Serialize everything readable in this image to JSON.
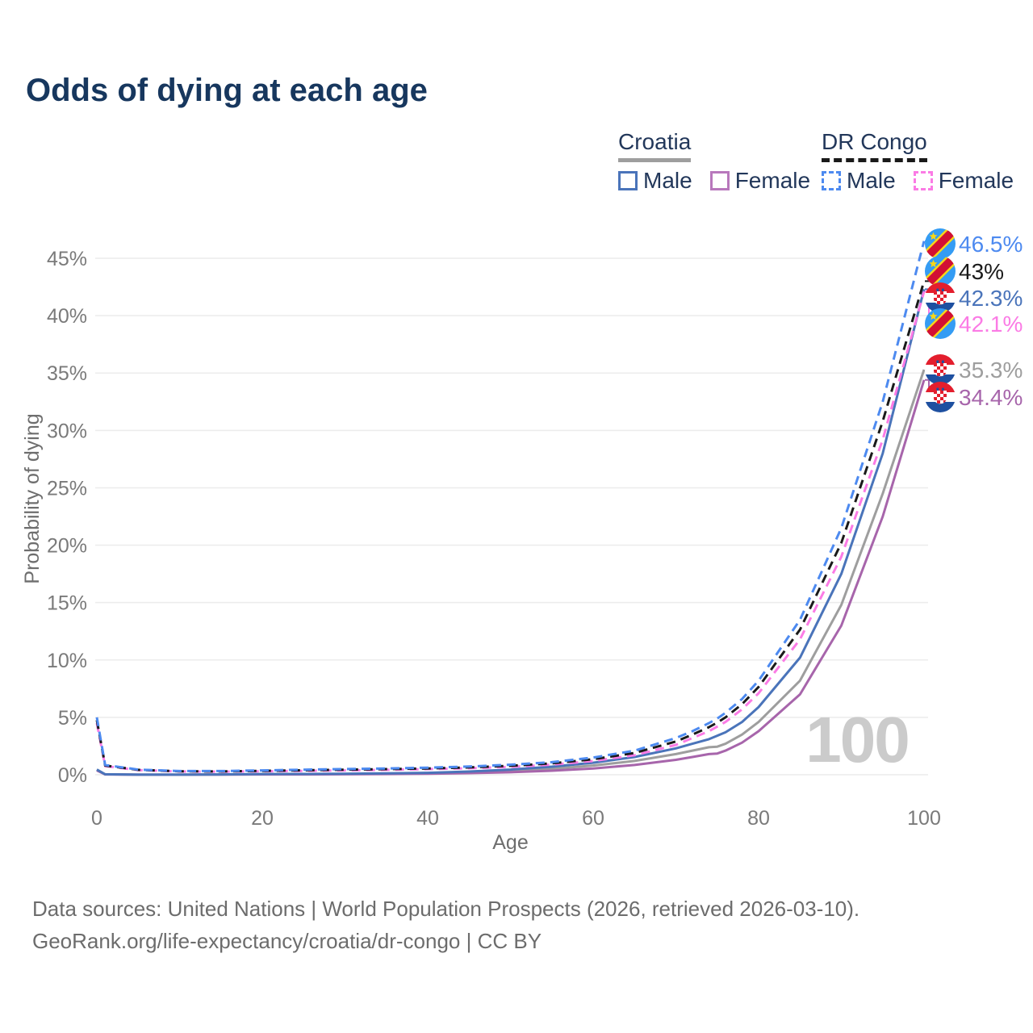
{
  "title": "Odds of dying at each age",
  "legend": {
    "croatia": {
      "label": "Croatia",
      "male_label": "Male",
      "female_label": "Female",
      "underline_color": "#9e9e9e",
      "male_color": "#4a74ba",
      "female_color": "#b878bc"
    },
    "drcongo": {
      "label": "DR Congo",
      "male_label": "Male",
      "female_label": "Female",
      "underline_color": "#1a1a1a",
      "male_color": "#4d8af0",
      "female_color": "#fb7be5"
    }
  },
  "footer": {
    "line1": "Data sources: United Nations | World Population Prospects (2026, retrieved 2026-03-10).",
    "line2": "GeoRank.org/life-expectancy/croatia/dr-congo | CC BY"
  },
  "chart_data": {
    "type": "line",
    "title": "Odds of dying at each age",
    "xlabel": "Age",
    "ylabel": "Probability of dying",
    "watermark": "100",
    "grid": "horizontal-only",
    "legend_position": "top-right",
    "xlim": [
      0,
      100
    ],
    "ylim": [
      0,
      47.5
    ],
    "x_ticks": [
      0,
      20,
      40,
      60,
      80,
      100
    ],
    "x_tick_labels": [
      "0",
      "20",
      "40",
      "60",
      "80",
      "100"
    ],
    "y_ticks_percent": [
      0,
      5,
      10,
      15,
      20,
      25,
      30,
      35,
      40,
      45
    ],
    "y_tick_labels": [
      "0%",
      "5%",
      "10%",
      "15%",
      "20%",
      "25%",
      "30%",
      "35%",
      "40%",
      "45%"
    ],
    "x": [
      0,
      1,
      5,
      10,
      15,
      20,
      25,
      30,
      35,
      40,
      45,
      50,
      55,
      60,
      65,
      70,
      72,
      74,
      75,
      76,
      78,
      80,
      85,
      90,
      95,
      100
    ],
    "series": [
      {
        "id": "drcongo-male",
        "country": "DR Congo",
        "sex": "Male",
        "style": "dashed",
        "color": "#4d8af0",
        "flag": "drcongo",
        "end_label": "46.5%",
        "values": [
          5.0,
          0.85,
          0.45,
          0.32,
          0.32,
          0.38,
          0.44,
          0.5,
          0.55,
          0.62,
          0.72,
          0.88,
          1.1,
          1.5,
          2.1,
          3.2,
          3.8,
          4.5,
          4.9,
          5.4,
          6.6,
          8.2,
          13.5,
          21.5,
          32.5,
          46.5
        ]
      },
      {
        "id": "drcongo-both",
        "country": "DR Congo",
        "sex": "Both sexes",
        "style": "dashed",
        "color": "#1a1a1a",
        "flag": "drcongo",
        "end_label": "43%",
        "values": [
          4.75,
          0.8,
          0.43,
          0.3,
          0.29,
          0.34,
          0.39,
          0.44,
          0.49,
          0.55,
          0.64,
          0.78,
          0.99,
          1.35,
          1.9,
          2.9,
          3.5,
          4.15,
          4.55,
          5.0,
          6.15,
          7.65,
          12.65,
          20.2,
          30.8,
          43.0
        ]
      },
      {
        "id": "croatia-male",
        "country": "Croatia",
        "sex": "Male",
        "style": "solid",
        "color": "#4a74ba",
        "flag": "croatia",
        "end_label": "42.3%",
        "values": [
          0.45,
          0.04,
          0.01,
          0.01,
          0.03,
          0.06,
          0.07,
          0.09,
          0.12,
          0.17,
          0.28,
          0.45,
          0.7,
          1.05,
          1.55,
          2.3,
          2.7,
          3.1,
          3.4,
          3.7,
          4.6,
          5.9,
          10.2,
          17.5,
          28.0,
          42.3
        ]
      },
      {
        "id": "drcongo-female",
        "country": "DR Congo",
        "sex": "Female",
        "style": "dashed",
        "color": "#fb7be5",
        "flag": "drcongo",
        "end_label": "42.1%",
        "values": [
          4.5,
          0.75,
          0.41,
          0.28,
          0.27,
          0.3,
          0.34,
          0.38,
          0.43,
          0.49,
          0.57,
          0.69,
          0.88,
          1.2,
          1.7,
          2.6,
          3.2,
          3.8,
          4.2,
          4.6,
          5.7,
          7.1,
          11.8,
          19.0,
          29.2,
          42.1
        ]
      },
      {
        "id": "croatia-both",
        "country": "Croatia",
        "sex": "Both sexes",
        "style": "solid",
        "color": "#9e9e9e",
        "flag": "croatia",
        "end_label": "35.3%",
        "values": [
          0.42,
          0.04,
          0.01,
          0.01,
          0.02,
          0.04,
          0.05,
          0.07,
          0.09,
          0.13,
          0.21,
          0.34,
          0.52,
          0.8,
          1.2,
          1.8,
          2.1,
          2.4,
          2.45,
          2.7,
          3.5,
          4.6,
          8.2,
          14.8,
          24.5,
          35.3
        ]
      },
      {
        "id": "croatia-female",
        "country": "Croatia",
        "sex": "Female",
        "style": "solid",
        "color": "#a765ab",
        "flag": "croatia",
        "end_label": "34.4%",
        "values": [
          0.38,
          0.03,
          0.01,
          0.01,
          0.02,
          0.03,
          0.03,
          0.04,
          0.06,
          0.09,
          0.14,
          0.22,
          0.35,
          0.55,
          0.85,
          1.3,
          1.55,
          1.8,
          1.85,
          2.1,
          2.8,
          3.8,
          7.0,
          13.0,
          22.5,
          34.4
        ]
      }
    ]
  }
}
